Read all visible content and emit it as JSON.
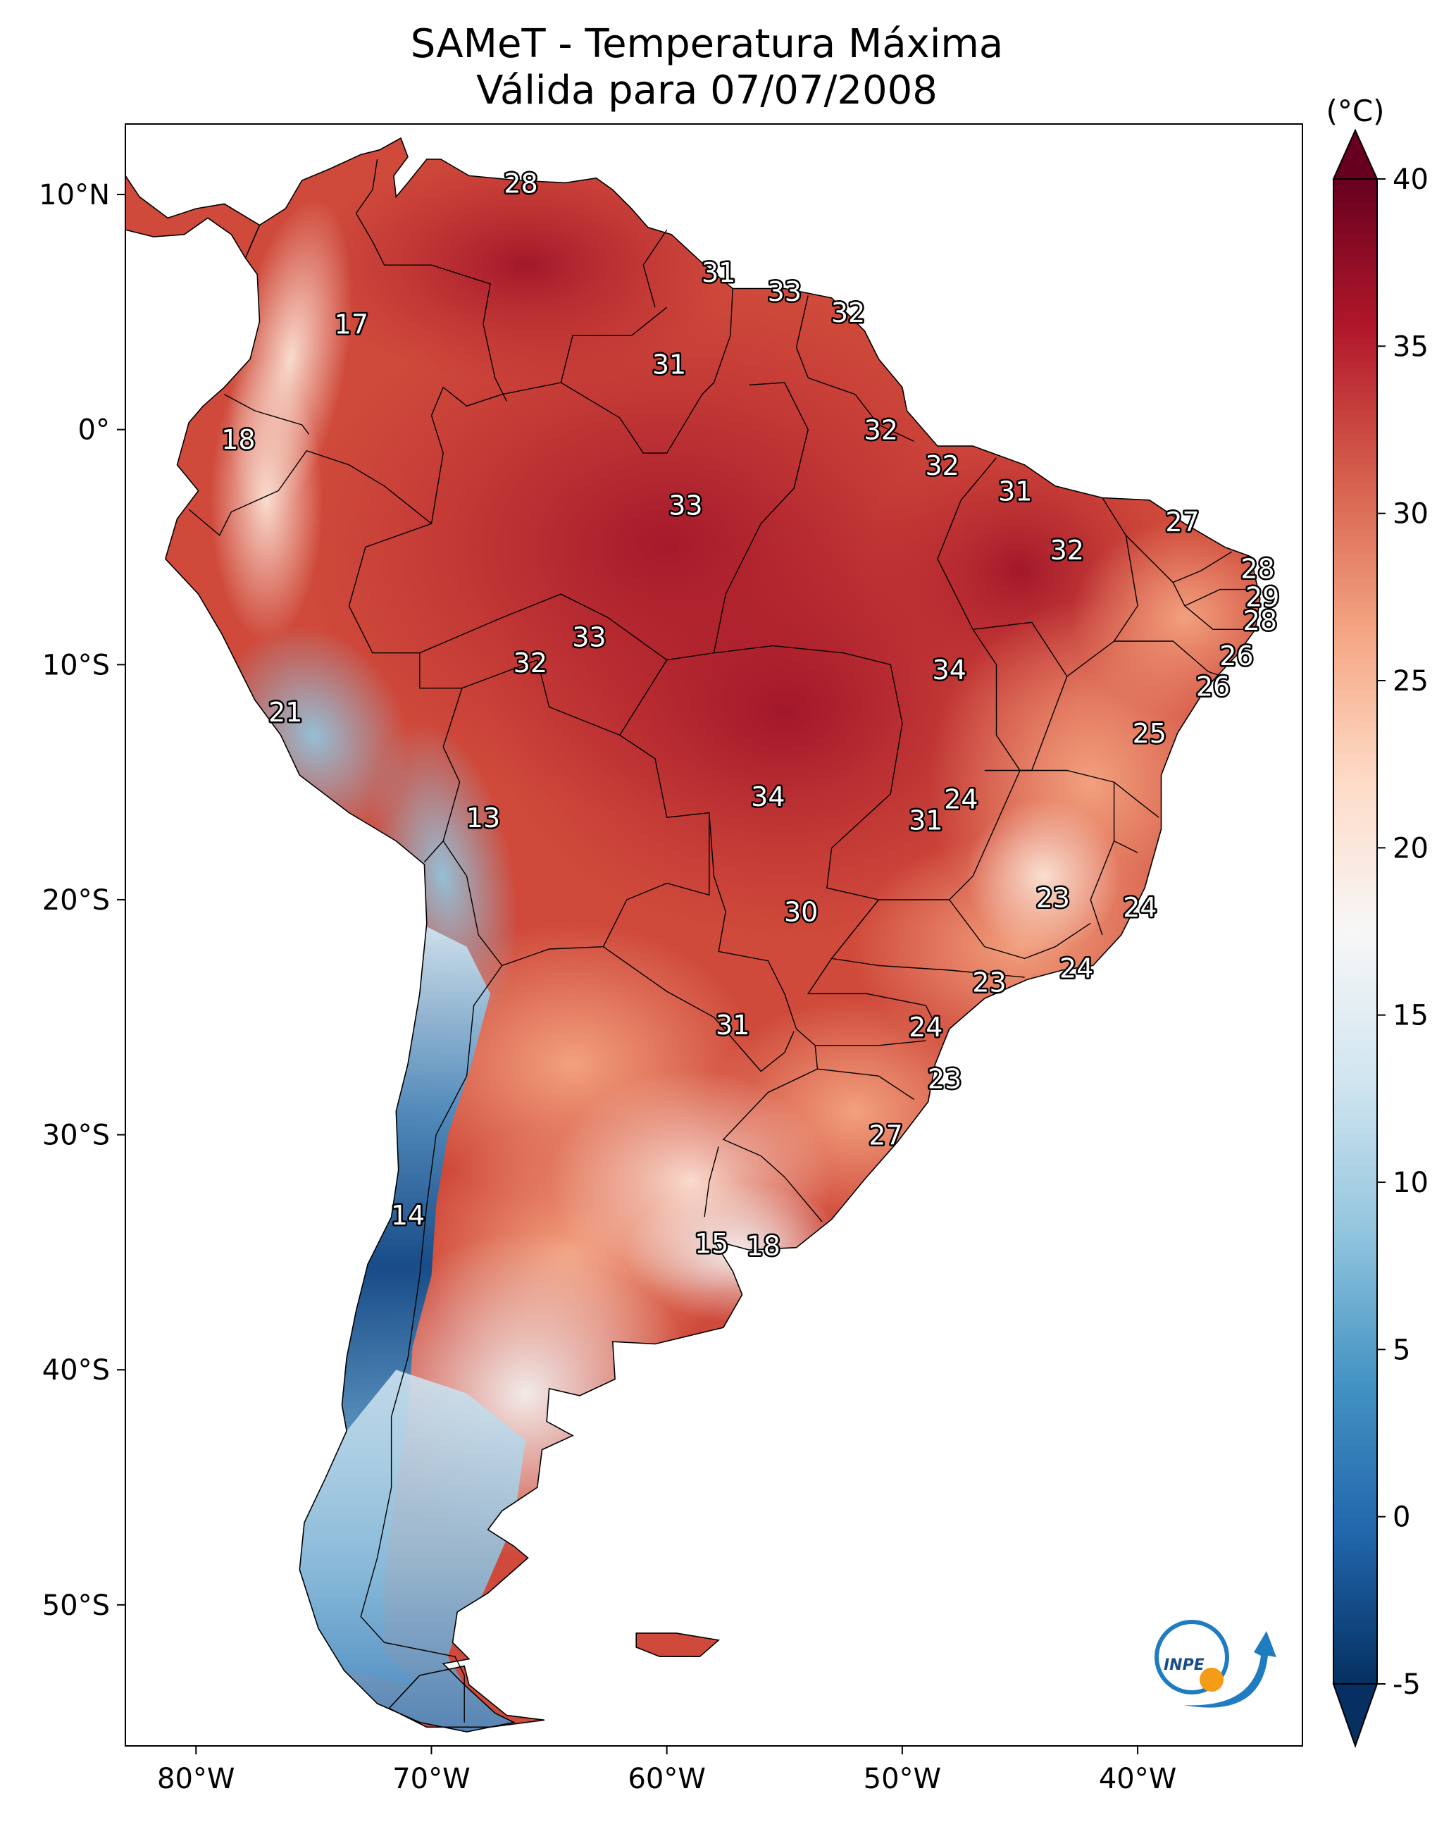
{
  "title": "SAMeT - Temperatura Máxima",
  "subtitle": "Válida para 07/07/2008",
  "colorbar": {
    "unit_label": "(°C)",
    "ticks": [
      40,
      35,
      30,
      25,
      20,
      15,
      10,
      5,
      0,
      -5
    ],
    "tick_labels": [
      "40",
      "35",
      "30",
      "25",
      "20",
      "15",
      "10",
      "5",
      "0",
      "-5"
    ],
    "range": [
      -5,
      40
    ],
    "extend": "both",
    "colors": [
      "#053061",
      "#2166ac",
      "#4393c3",
      "#92c5de",
      "#d1e5f0",
      "#f7f7f7",
      "#fddbc7",
      "#f4a582",
      "#d6604d",
      "#b2182b",
      "#67001f"
    ]
  },
  "axes": {
    "lon_ticks": [
      -80,
      -70,
      -60,
      -50,
      -40
    ],
    "lon_labels": [
      "80°W",
      "70°W",
      "60°W",
      "50°W",
      "40°W"
    ],
    "lat_ticks": [
      10,
      0,
      -10,
      -20,
      -30,
      -40,
      -50
    ],
    "lat_labels": [
      "10°N",
      "0°",
      "10°S",
      "20°S",
      "30°S",
      "40°S",
      "50°S"
    ],
    "lon_range": [
      -83,
      -33
    ],
    "lat_range": [
      -56,
      13
    ]
  },
  "station_labels": [
    {
      "text": "28",
      "lon": -66.2,
      "lat": 10.5
    },
    {
      "text": "17",
      "lon": -73.4,
      "lat": 4.5
    },
    {
      "text": "31",
      "lon": -57.8,
      "lat": 6.7
    },
    {
      "text": "33",
      "lon": -55.0,
      "lat": 5.9
    },
    {
      "text": "32",
      "lon": -52.3,
      "lat": 5.0
    },
    {
      "text": "31",
      "lon": -59.9,
      "lat": 2.8
    },
    {
      "text": "18",
      "lon": -78.2,
      "lat": -0.4
    },
    {
      "text": "32",
      "lon": -50.9,
      "lat": 0.0
    },
    {
      "text": "32",
      "lon": -48.3,
      "lat": -1.5
    },
    {
      "text": "31",
      "lon": -45.2,
      "lat": -2.6
    },
    {
      "text": "33",
      "lon": -59.2,
      "lat": -3.2
    },
    {
      "text": "27",
      "lon": -38.1,
      "lat": -3.9
    },
    {
      "text": "32",
      "lon": -43.0,
      "lat": -5.1
    },
    {
      "text": "28",
      "lon": -34.9,
      "lat": -5.9
    },
    {
      "text": "29",
      "lon": -34.7,
      "lat": -7.1
    },
    {
      "text": "28",
      "lon": -34.8,
      "lat": -8.1
    },
    {
      "text": "33",
      "lon": -63.3,
      "lat": -8.8
    },
    {
      "text": "26",
      "lon": -35.8,
      "lat": -9.6
    },
    {
      "text": "32",
      "lon": -65.8,
      "lat": -9.9
    },
    {
      "text": "34",
      "lon": -48.0,
      "lat": -10.2
    },
    {
      "text": "26",
      "lon": -36.8,
      "lat": -10.9
    },
    {
      "text": "21",
      "lon": -76.2,
      "lat": -12.0
    },
    {
      "text": "25",
      "lon": -39.5,
      "lat": -12.9
    },
    {
      "text": "34",
      "lon": -55.7,
      "lat": -15.6
    },
    {
      "text": "24",
      "lon": -47.5,
      "lat": -15.7
    },
    {
      "text": "13",
      "lon": -67.8,
      "lat": -16.5
    },
    {
      "text": "31",
      "lon": -49.0,
      "lat": -16.6
    },
    {
      "text": "23",
      "lon": -43.6,
      "lat": -19.9
    },
    {
      "text": "24",
      "lon": -39.9,
      "lat": -20.3
    },
    {
      "text": "30",
      "lon": -54.3,
      "lat": -20.5
    },
    {
      "text": "24",
      "lon": -42.6,
      "lat": -22.9
    },
    {
      "text": "23",
      "lon": -46.3,
      "lat": -23.5
    },
    {
      "text": "31",
      "lon": -57.2,
      "lat": -25.3
    },
    {
      "text": "24",
      "lon": -49.0,
      "lat": -25.4
    },
    {
      "text": "23",
      "lon": -48.2,
      "lat": -27.6
    },
    {
      "text": "27",
      "lon": -50.7,
      "lat": -30.0
    },
    {
      "text": "14",
      "lon": -71.0,
      "lat": -33.4
    },
    {
      "text": "15",
      "lon": -58.1,
      "lat": -34.6
    },
    {
      "text": "18",
      "lon": -55.9,
      "lat": -34.7
    }
  ],
  "logo": {
    "text": "INPE"
  }
}
